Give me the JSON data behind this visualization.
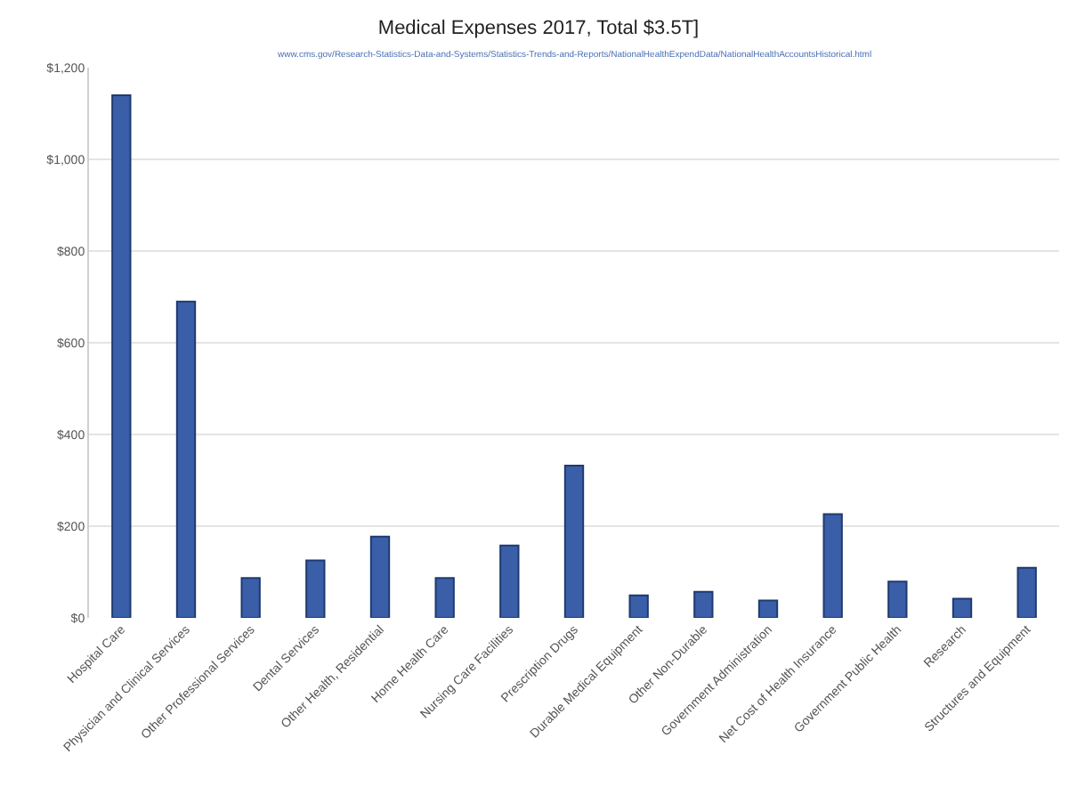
{
  "chart_data": {
    "type": "bar",
    "title": "Medical Expenses 2017, Total $3.5T]",
    "annotations": [
      "www.cms.gov/Research-Statistics-Data-and-Systems/Statistics-Trends-and-Reports/NationalHealthExpendData/NationalHealthAccountsHistorical.html"
    ],
    "categories": [
      "Hospital Care",
      "Physician and Clinical Services",
      "Other Professional Services",
      "Dental Services",
      "Other Health, Residential",
      "Home Health Care",
      "Nursing Care Facilities",
      "Prescription Drugs",
      "Durable Medical Equipment",
      "Other Non-Durable",
      "Government Administration",
      "Net Cost of Health Insurance",
      "Government Public Health",
      "Research",
      "Structures and Equipment"
    ],
    "values": [
      1140,
      690,
      87,
      125,
      177,
      87,
      158,
      332,
      49,
      57,
      38,
      226,
      79,
      42,
      109
    ],
    "color": "#3a5fa8",
    "ylim": [
      0,
      1200
    ],
    "yticks": [
      {
        "value": 0,
        "label": "$0"
      },
      {
        "value": 200,
        "label": "$200"
      },
      {
        "value": 400,
        "label": "$400"
      },
      {
        "value": 600,
        "label": "$600"
      },
      {
        "value": 800,
        "label": "$800"
      },
      {
        "value": 1000,
        "label": "$1,000"
      },
      {
        "value": 1200,
        "label": "$1,200"
      }
    ],
    "grid": "y"
  }
}
